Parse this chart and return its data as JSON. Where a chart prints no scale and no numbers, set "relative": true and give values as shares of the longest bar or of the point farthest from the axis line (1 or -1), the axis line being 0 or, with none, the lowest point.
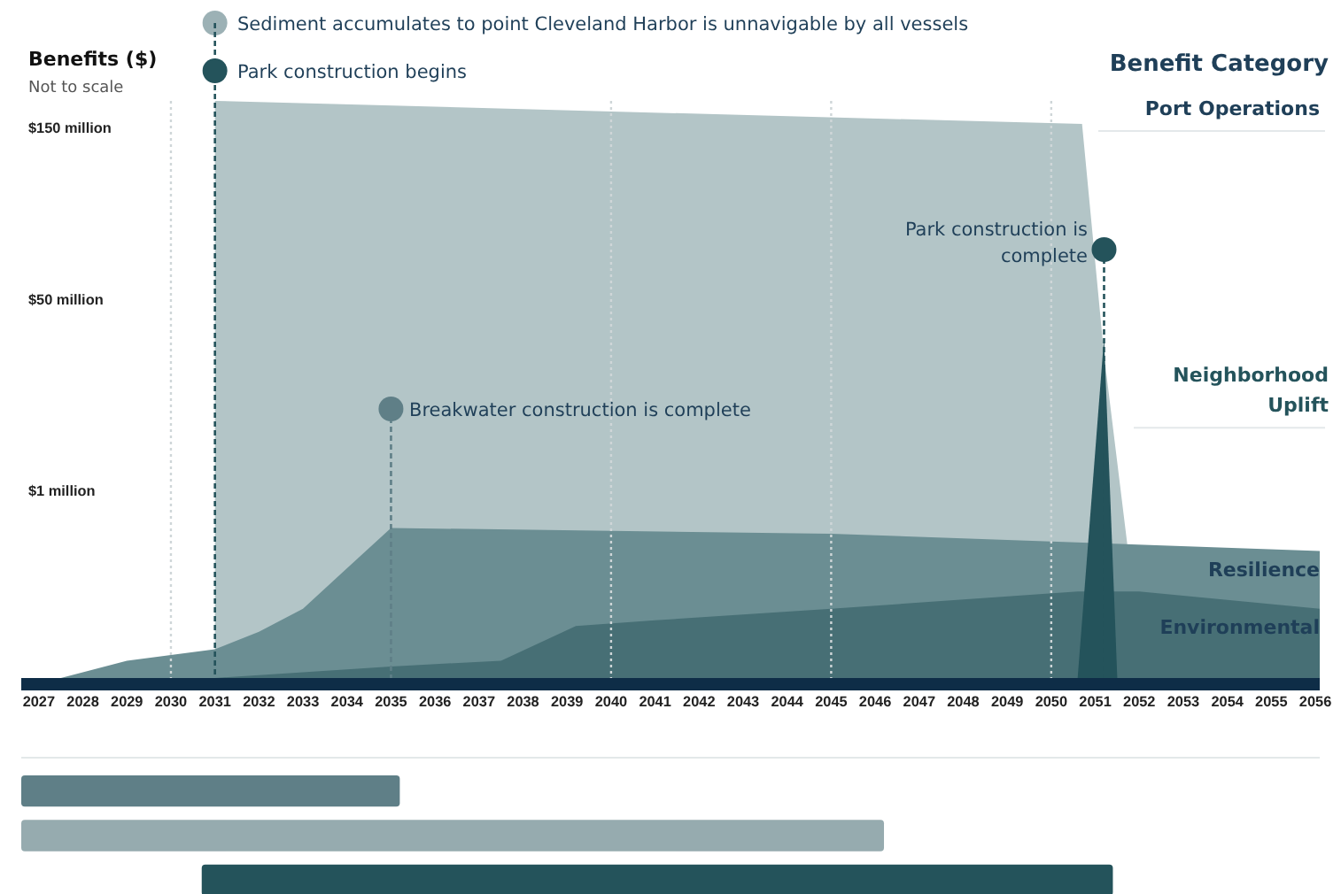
{
  "chart_data": [
    {
      "type": "area",
      "relative": true,
      "ylabel": "Benefits ($)",
      "subtitle": "Not to scale",
      "legend_title": "Benefit Category",
      "legend": "right",
      "xlim": [
        2026.6,
        2056.1
      ],
      "xticks": [
        2027,
        2028,
        2029,
        2030,
        2031,
        2032,
        2033,
        2034,
        2035,
        2036,
        2037,
        2038,
        2039,
        2040,
        2041,
        2042,
        2043,
        2044,
        2045,
        2046,
        2047,
        2048,
        2049,
        2050,
        2051,
        2052,
        2053,
        2054,
        2055,
        2056
      ],
      "series": [
        {
          "name": "Port Operations",
          "color": "#b3c5c7",
          "x": [
            2031,
            2031,
            2050.7,
            2051.2,
            2052.1
          ],
          "values": [
            0,
            1,
            0.96,
            0.56,
            0
          ]
        },
        {
          "name": "Resilience",
          "color": "#6b8e93",
          "x": [
            2027.5,
            2029,
            2030,
            2031,
            2032,
            2033,
            2034,
            2035,
            2045,
            2056.1
          ],
          "values": [
            0,
            0.03,
            0.04,
            0.05,
            0.08,
            0.12,
            0.19,
            0.26,
            0.25,
            0.22
          ]
        },
        {
          "name": "Environmental",
          "color": "#476f75",
          "x": [
            2031,
            2035,
            2037.5,
            2039.2,
            2041,
            2045,
            2050.6,
            2052,
            2056.1
          ],
          "values": [
            0,
            0.02,
            0.03,
            0.09,
            0.1,
            0.12,
            0.15,
            0.15,
            0.12
          ]
        },
        {
          "name": "Neighborhood Uplift",
          "color": "#24535b",
          "x": [
            2050.6,
            2051.2,
            2051.5
          ],
          "values": [
            0,
            0.59,
            0
          ]
        }
      ],
      "ref_lines": [
        {
          "axis": "x",
          "value": 2030,
          "color": "#cfd6d8",
          "line_style": "dotted"
        },
        {
          "axis": "x",
          "value": 2040,
          "color": "#cfd6d8",
          "line_style": "dotted"
        },
        {
          "axis": "x",
          "value": 2045,
          "color": "#cfd6d8",
          "line_style": "dotted"
        },
        {
          "axis": "x",
          "value": 2050,
          "color": "#cfd6d8",
          "line_style": "dotted"
        },
        {
          "axis": "x",
          "value": 2031,
          "color": "#24535b",
          "line_style": "dashed"
        },
        {
          "axis": "x",
          "value": 2035,
          "color": "#5f7f87",
          "line_style": "dashed"
        },
        {
          "axis": "x",
          "value": 2051.2,
          "color": "#24535b",
          "line_style": "dashed"
        }
      ],
      "annotations": [
        "Sediment accumulates to point Cleveland Harbor is unnavigable by all vessels",
        "Park construction begins",
        "Breakwater construction is complete",
        "Park construction is complete",
        "$150 million",
        "$50 million",
        "$1 million"
      ]
    },
    {
      "type": "bar",
      "orientation": "horizontal",
      "categories": [
        null,
        null,
        null
      ],
      "base": [
        2026.6,
        2026.6,
        2030.7
      ],
      "values": [
        8.6,
        19.6,
        20.7
      ],
      "colors": [
        "#5f7f87",
        "#96abaf",
        "#24535b"
      ],
      "xlim": [
        2026.6,
        2056.1
      ],
      "tick_labels": false
    }
  ]
}
